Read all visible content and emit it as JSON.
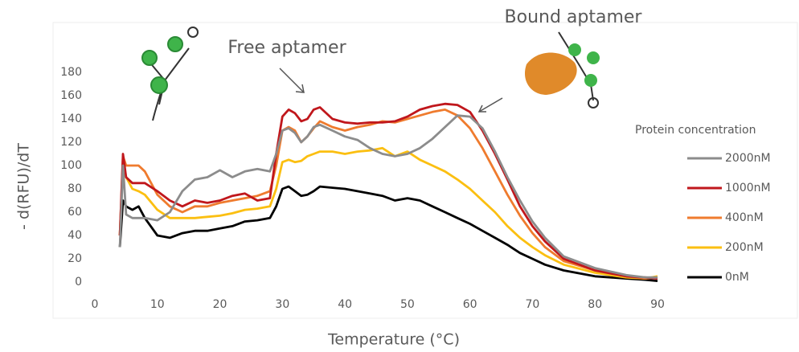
{
  "chart_data": {
    "type": "line",
    "xlabel": "Temperature (°C)",
    "ylabel": "- d(RFU)/dT",
    "annotations": [
      "Free aptamer",
      "Bound aptamer"
    ],
    "legend_title": "Protein concentration",
    "legend": "right",
    "grid": false,
    "xlim": [
      0,
      90
    ],
    "ylim": [
      0,
      180
    ],
    "xticks": [
      0,
      10,
      20,
      30,
      40,
      50,
      60,
      70,
      80,
      90
    ],
    "yticks": [
      0,
      20,
      40,
      60,
      80,
      100,
      120,
      140,
      160,
      180
    ],
    "x": [
      4,
      4.5,
      5,
      6,
      7,
      8,
      10,
      12,
      14,
      16,
      18,
      20,
      22,
      24,
      26,
      28,
      29,
      30,
      31,
      32,
      33,
      34,
      35,
      36,
      38,
      40,
      42,
      44,
      46,
      48,
      50,
      52,
      54,
      56,
      58,
      60,
      62,
      64,
      66,
      68,
      70,
      72,
      75,
      80,
      85,
      88,
      90
    ],
    "series": [
      {
        "name": "2000nM",
        "color": "#8c8c8c",
        "values": [
          30,
          100,
          58,
          55,
          55,
          55,
          53,
          60,
          78,
          88,
          90,
          96,
          90,
          95,
          97,
          95,
          110,
          130,
          132,
          128,
          120,
          125,
          133,
          135,
          130,
          125,
          122,
          115,
          110,
          108,
          110,
          115,
          123,
          133,
          143,
          142,
          132,
          112,
          90,
          70,
          52,
          38,
          22,
          12,
          6,
          4,
          4
        ]
      },
      {
        "name": "1000nM",
        "color": "#c0171c",
        "values": [
          40,
          110,
          90,
          85,
          85,
          85,
          78,
          70,
          65,
          70,
          68,
          70,
          74,
          76,
          70,
          72,
          110,
          142,
          148,
          145,
          138,
          140,
          148,
          150,
          140,
          137,
          136,
          137,
          137,
          138,
          142,
          148,
          151,
          153,
          152,
          146,
          130,
          110,
          88,
          65,
          48,
          35,
          20,
          10,
          5,
          4,
          3
        ]
      },
      {
        "name": "400nM",
        "color": "#ef7b2e",
        "values": [
          40,
          108,
          100,
          100,
          100,
          95,
          75,
          65,
          60,
          65,
          65,
          68,
          70,
          72,
          74,
          78,
          100,
          130,
          133,
          130,
          120,
          125,
          132,
          138,
          133,
          130,
          133,
          135,
          138,
          137,
          140,
          143,
          146,
          148,
          143,
          132,
          115,
          95,
          75,
          57,
          42,
          30,
          18,
          10,
          5,
          3,
          4
        ]
      },
      {
        "name": "200nM",
        "color": "#fbbf11",
        "values": [
          40,
          100,
          90,
          80,
          78,
          75,
          62,
          55,
          55,
          55,
          56,
          57,
          59,
          62,
          63,
          65,
          80,
          103,
          105,
          103,
          104,
          108,
          110,
          112,
          112,
          110,
          112,
          113,
          115,
          108,
          112,
          105,
          100,
          95,
          88,
          80,
          70,
          60,
          48,
          38,
          30,
          23,
          15,
          8,
          4,
          3,
          5
        ]
      },
      {
        "name": "0nM",
        "color": "#000000",
        "values": [
          30,
          70,
          65,
          62,
          65,
          55,
          40,
          38,
          42,
          44,
          44,
          46,
          48,
          52,
          53,
          55,
          65,
          80,
          82,
          78,
          74,
          75,
          78,
          82,
          81,
          80,
          78,
          76,
          74,
          70,
          72,
          70,
          65,
          60,
          55,
          50,
          44,
          38,
          32,
          25,
          20,
          15,
          10,
          5,
          3,
          2,
          1
        ]
      }
    ]
  }
}
